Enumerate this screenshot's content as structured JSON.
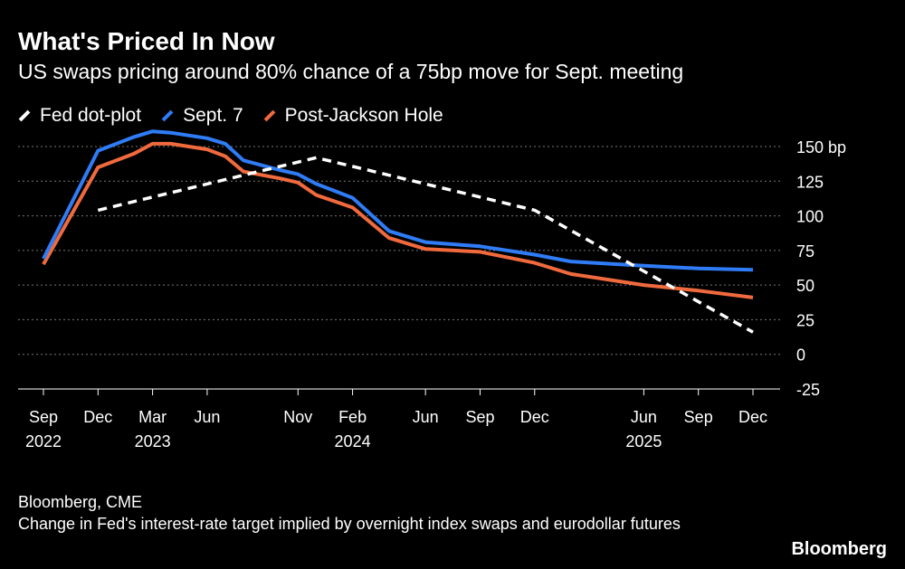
{
  "title": "What's Priced In Now",
  "subtitle": "US swaps pricing around 80% chance of a 75bp move for Sept. meeting",
  "source": "Bloomberg, CME",
  "note": "Change in Fed's interest-rate target implied by overnight index swaps and eurodollar futures",
  "logo": "Bloomberg",
  "colors": {
    "fed": "#ffffff",
    "sep7": "#2f7cf6",
    "post": "#f06a3e",
    "grid": "#777777"
  },
  "chart_data": {
    "type": "line",
    "ylim": [
      -25,
      150
    ],
    "yticks": [
      -25,
      0,
      25,
      50,
      75,
      100,
      125,
      150
    ],
    "ytick_labels": [
      "-25",
      "0",
      "25",
      "50",
      "75",
      "100",
      "125",
      "150 bp"
    ],
    "xlim": [
      2022.667,
      2025.917
    ],
    "x_ticks": [
      {
        "x": 2022.667,
        "label": "Sep",
        "year": "2022"
      },
      {
        "x": 2022.917,
        "label": "Dec",
        "year": ""
      },
      {
        "x": 2023.167,
        "label": "Mar",
        "year": "2023"
      },
      {
        "x": 2023.417,
        "label": "Jun",
        "year": ""
      },
      {
        "x": 2023.833,
        "label": "Nov",
        "year": ""
      },
      {
        "x": 2024.083,
        "label": "Feb",
        "year": "2024"
      },
      {
        "x": 2024.417,
        "label": "Jun",
        "year": ""
      },
      {
        "x": 2024.667,
        "label": "Sep",
        "year": ""
      },
      {
        "x": 2024.917,
        "label": "Dec",
        "year": ""
      },
      {
        "x": 2025.417,
        "label": "Jun",
        "year": "2025"
      },
      {
        "x": 2025.667,
        "label": "Sep",
        "year": ""
      },
      {
        "x": 2025.917,
        "label": "Dec",
        "year": ""
      }
    ],
    "series": [
      {
        "name": "Fed dot-plot",
        "style": "dashed",
        "color_key": "fed",
        "x": [
          2022.917,
          2023.917,
          2024.917,
          2025.917
        ],
        "y": [
          104,
          142,
          104,
          16
        ]
      },
      {
        "name": "Sept. 7",
        "style": "solid",
        "color_key": "sep7",
        "x": [
          2022.667,
          2022.917,
          2023.083,
          2023.167,
          2023.25,
          2023.417,
          2023.5,
          2023.583,
          2023.75,
          2023.833,
          2023.917,
          2024.083,
          2024.25,
          2024.417,
          2024.667,
          2024.917,
          2025.083,
          2025.417,
          2025.667,
          2025.917
        ],
        "y": [
          69,
          147,
          157,
          161,
          160,
          156,
          152,
          140,
          133,
          130,
          123,
          113,
          89,
          81,
          78,
          72,
          67,
          64,
          62,
          61
        ]
      },
      {
        "name": "Post-Jackson Hole",
        "style": "solid",
        "color_key": "post",
        "x": [
          2022.667,
          2022.917,
          2023.083,
          2023.167,
          2023.25,
          2023.417,
          2023.5,
          2023.583,
          2023.75,
          2023.833,
          2023.917,
          2024.083,
          2024.25,
          2024.417,
          2024.667,
          2024.917,
          2025.083,
          2025.417,
          2025.667,
          2025.917
        ],
        "y": [
          65,
          135,
          145,
          152,
          152,
          148,
          143,
          132,
          127,
          124,
          115,
          106,
          84,
          76,
          74,
          66,
          58,
          50,
          46,
          41
        ]
      }
    ]
  }
}
